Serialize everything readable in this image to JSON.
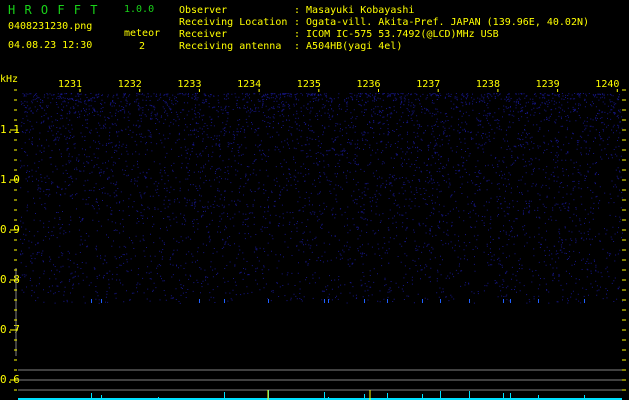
{
  "header": {
    "app_title": "H R O F F T",
    "version": "1.0.0",
    "filename": "0408231230.png",
    "datetime": "04.08.23 12:30",
    "meteor_label": "meteor",
    "meteor_count": "2"
  },
  "info": [
    {
      "label": "Observer",
      "value": ": Masayuki Kobayashi"
    },
    {
      "label": "Receiving Location",
      "value": ": Ogata-vill. Akita-Pref. JAPAN (139.96E, 40.02N)"
    },
    {
      "label": "Receiver",
      "value": ": ICOM IC-575 53.7492(@LCD)MHz USB"
    },
    {
      "label": "Receiving antenna",
      "value": ": A504HB(yagi 4el)"
    }
  ],
  "spectrogram": {
    "y_unit": "kHz",
    "y_ticks": [
      "1.1",
      "1.0",
      "0.9",
      "0.8",
      "0.7",
      "0.6"
    ],
    "x_ticks": [
      "1231",
      "1232",
      "1233",
      "1234",
      "1235",
      "1236",
      "1237",
      "1238",
      "1239",
      "1240"
    ],
    "colors": {
      "text": "#ffff00",
      "title": "#19d219",
      "noise": "#1a1aa0",
      "echo": "#00e0ff",
      "baseline": "#808080"
    }
  }
}
